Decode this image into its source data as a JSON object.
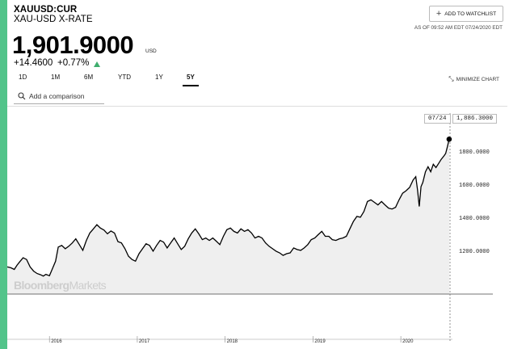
{
  "header": {
    "ticker": "XAUUSD:CUR",
    "name": "XAU-USD X-RATE",
    "price": "1,901.9000",
    "currency": "USD",
    "change": "+14.4600",
    "change_pct": "+0.77%",
    "watchlist_label": "ADD TO WATCHLIST",
    "as_of": "AS OF 09:52 AM EDT 07/24/2020 EDT"
  },
  "tabs": [
    {
      "label": "1D"
    },
    {
      "label": "1M"
    },
    {
      "label": "6M"
    },
    {
      "label": "YTD"
    },
    {
      "label": "1Y"
    },
    {
      "label": "5Y",
      "active": true
    }
  ],
  "minimize_label": "MINIMIZE CHART",
  "search": {
    "placeholder": "Add a comparison"
  },
  "branding": {
    "bold": "Bloomberg",
    "light": "Markets"
  },
  "colors": {
    "accent": "#52c48a",
    "up": "#3fae6e",
    "line": "#000000",
    "area": "#efefef"
  },
  "chart_data": {
    "type": "area",
    "crosshair_date": "07/24",
    "crosshair_value": "1,886.3000",
    "y_ticks": [
      "1200.0000",
      "1400.0000",
      "1600.0000",
      "1800.0000"
    ],
    "y_tick_values": [
      1200,
      1400,
      1600,
      1800
    ],
    "x_ticks": [
      "2016",
      "2017",
      "2018",
      "2019",
      "2020"
    ],
    "x_tick_dates": [
      2016.0,
      2017.0,
      2018.0,
      2019.0,
      2020.0
    ],
    "x_range": [
      2015.52,
      2020.56
    ],
    "y_range": [
      900,
      1960
    ],
    "series": [
      {
        "points": [
          [
            2015.52,
            1115
          ],
          [
            2015.56,
            1110
          ],
          [
            2015.6,
            1100
          ],
          [
            2015.63,
            1125
          ],
          [
            2015.66,
            1145
          ],
          [
            2015.7,
            1170
          ],
          [
            2015.74,
            1160
          ],
          [
            2015.78,
            1115
          ],
          [
            2015.82,
            1090
          ],
          [
            2015.86,
            1075
          ],
          [
            2015.9,
            1068
          ],
          [
            2015.93,
            1060
          ],
          [
            2015.96,
            1070
          ],
          [
            2016.0,
            1062
          ],
          [
            2016.03,
            1100
          ],
          [
            2016.07,
            1150
          ],
          [
            2016.1,
            1235
          ],
          [
            2016.14,
            1245
          ],
          [
            2016.18,
            1225
          ],
          [
            2016.22,
            1240
          ],
          [
            2016.26,
            1260
          ],
          [
            2016.3,
            1285
          ],
          [
            2016.34,
            1250
          ],
          [
            2016.38,
            1215
          ],
          [
            2016.42,
            1275
          ],
          [
            2016.46,
            1320
          ],
          [
            2016.5,
            1345
          ],
          [
            2016.54,
            1370
          ],
          [
            2016.58,
            1350
          ],
          [
            2016.62,
            1338
          ],
          [
            2016.66,
            1315
          ],
          [
            2016.7,
            1332
          ],
          [
            2016.74,
            1320
          ],
          [
            2016.78,
            1268
          ],
          [
            2016.82,
            1260
          ],
          [
            2016.86,
            1225
          ],
          [
            2016.9,
            1180
          ],
          [
            2016.94,
            1160
          ],
          [
            2016.98,
            1150
          ],
          [
            2017.02,
            1195
          ],
          [
            2017.06,
            1225
          ],
          [
            2017.1,
            1255
          ],
          [
            2017.14,
            1245
          ],
          [
            2017.18,
            1210
          ],
          [
            2017.22,
            1245
          ],
          [
            2017.26,
            1275
          ],
          [
            2017.3,
            1265
          ],
          [
            2017.34,
            1230
          ],
          [
            2017.38,
            1260
          ],
          [
            2017.42,
            1290
          ],
          [
            2017.46,
            1255
          ],
          [
            2017.5,
            1220
          ],
          [
            2017.54,
            1240
          ],
          [
            2017.58,
            1285
          ],
          [
            2017.62,
            1320
          ],
          [
            2017.66,
            1345
          ],
          [
            2017.7,
            1315
          ],
          [
            2017.74,
            1280
          ],
          [
            2017.78,
            1290
          ],
          [
            2017.82,
            1275
          ],
          [
            2017.86,
            1290
          ],
          [
            2017.9,
            1270
          ],
          [
            2017.94,
            1250
          ],
          [
            2017.98,
            1300
          ],
          [
            2018.02,
            1340
          ],
          [
            2018.06,
            1350
          ],
          [
            2018.1,
            1330
          ],
          [
            2018.14,
            1320
          ],
          [
            2018.18,
            1345
          ],
          [
            2018.22,
            1330
          ],
          [
            2018.26,
            1340
          ],
          [
            2018.3,
            1320
          ],
          [
            2018.34,
            1290
          ],
          [
            2018.38,
            1300
          ],
          [
            2018.42,
            1290
          ],
          [
            2018.46,
            1260
          ],
          [
            2018.5,
            1240
          ],
          [
            2018.54,
            1225
          ],
          [
            2018.58,
            1210
          ],
          [
            2018.62,
            1200
          ],
          [
            2018.66,
            1185
          ],
          [
            2018.7,
            1195
          ],
          [
            2018.74,
            1200
          ],
          [
            2018.78,
            1230
          ],
          [
            2018.82,
            1220
          ],
          [
            2018.86,
            1215
          ],
          [
            2018.9,
            1230
          ],
          [
            2018.94,
            1250
          ],
          [
            2018.98,
            1280
          ],
          [
            2019.02,
            1290
          ],
          [
            2019.06,
            1310
          ],
          [
            2019.1,
            1330
          ],
          [
            2019.14,
            1300
          ],
          [
            2019.18,
            1300
          ],
          [
            2019.22,
            1280
          ],
          [
            2019.26,
            1275
          ],
          [
            2019.3,
            1285
          ],
          [
            2019.34,
            1290
          ],
          [
            2019.38,
            1300
          ],
          [
            2019.42,
            1345
          ],
          [
            2019.46,
            1390
          ],
          [
            2019.5,
            1420
          ],
          [
            2019.54,
            1415
          ],
          [
            2019.58,
            1450
          ],
          [
            2019.62,
            1510
          ],
          [
            2019.66,
            1520
          ],
          [
            2019.7,
            1505
          ],
          [
            2019.74,
            1490
          ],
          [
            2019.78,
            1510
          ],
          [
            2019.82,
            1490
          ],
          [
            2019.86,
            1470
          ],
          [
            2019.9,
            1465
          ],
          [
            2019.94,
            1475
          ],
          [
            2019.98,
            1520
          ],
          [
            2020.02,
            1560
          ],
          [
            2020.06,
            1575
          ],
          [
            2020.1,
            1595
          ],
          [
            2020.14,
            1640
          ],
          [
            2020.17,
            1660
          ],
          [
            2020.19,
            1580
          ],
          [
            2020.21,
            1480
          ],
          [
            2020.23,
            1600
          ],
          [
            2020.25,
            1625
          ],
          [
            2020.28,
            1690
          ],
          [
            2020.31,
            1720
          ],
          [
            2020.34,
            1690
          ],
          [
            2020.37,
            1735
          ],
          [
            2020.4,
            1715
          ],
          [
            2020.43,
            1740
          ],
          [
            2020.46,
            1765
          ],
          [
            2020.49,
            1785
          ],
          [
            2020.51,
            1800
          ],
          [
            2020.53,
            1840
          ],
          [
            2020.55,
            1886.3
          ]
        ]
      }
    ]
  }
}
